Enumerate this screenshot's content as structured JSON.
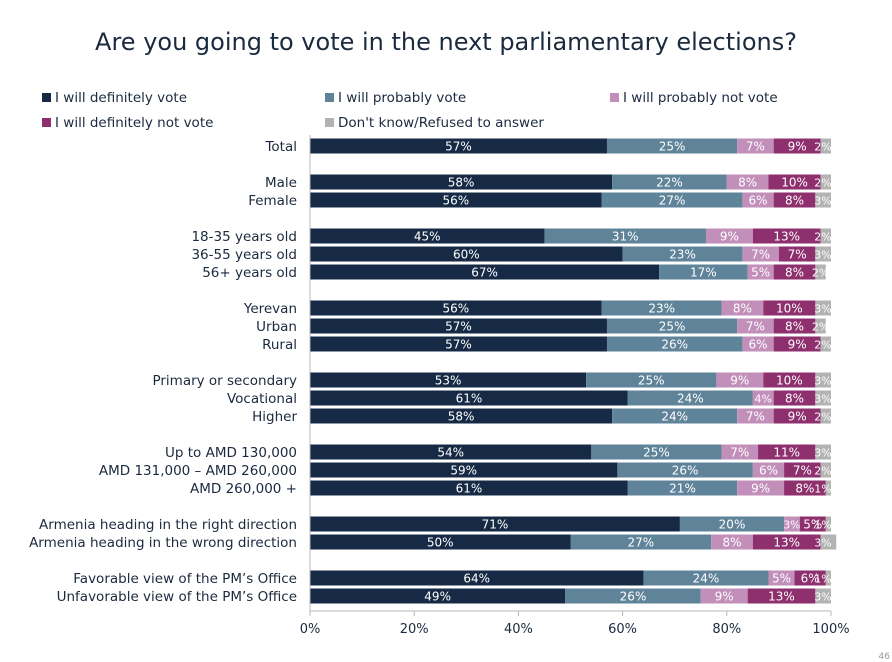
{
  "title": "Are you going to vote in the next parliamentary elections?",
  "page_number": "46",
  "colors": {
    "definitely_vote": "#172a45",
    "probably_vote": "#5f8399",
    "probably_not_vote": "#c28fba",
    "definitely_not_vote": "#8e2f6e",
    "dont_know": "#b3b3b3"
  },
  "chart_data": {
    "type": "bar",
    "orientation": "horizontal",
    "stacked": true,
    "title": "Are you going to vote in the next parliamentary elections?",
    "xlim": [
      0,
      100
    ],
    "x_ticks": [
      "0%",
      "20%",
      "40%",
      "60%",
      "80%",
      "100%"
    ],
    "legend_position": "top",
    "series": [
      {
        "name": "I will definitely vote",
        "color": "#172a45"
      },
      {
        "name": "I will probably vote",
        "color": "#5f8399"
      },
      {
        "name": "I will probably not vote",
        "color": "#c28fba"
      },
      {
        "name": "I will definitely not vote",
        "color": "#8e2f6e"
      },
      {
        "name": "Don't know/Refused to answer",
        "color": "#b3b3b3"
      }
    ],
    "groups": [
      {
        "rows": [
          {
            "label": "Total",
            "values": [
              57,
              25,
              7,
              9,
              2
            ]
          }
        ]
      },
      {
        "rows": [
          {
            "label": "Male",
            "values": [
              58,
              22,
              8,
              10,
              2
            ]
          },
          {
            "label": "Female",
            "values": [
              56,
              27,
              6,
              8,
              3
            ]
          }
        ]
      },
      {
        "rows": [
          {
            "label": "18-35 years old",
            "values": [
              45,
              31,
              9,
              13,
              2
            ]
          },
          {
            "label": "36-55 years old",
            "values": [
              60,
              23,
              7,
              7,
              3
            ]
          },
          {
            "label": "56+ years old",
            "values": [
              67,
              17,
              5,
              8,
              2
            ]
          }
        ]
      },
      {
        "rows": [
          {
            "label": "Yerevan",
            "values": [
              56,
              23,
              8,
              10,
              3
            ]
          },
          {
            "label": "Urban",
            "values": [
              57,
              25,
              7,
              8,
              2
            ]
          },
          {
            "label": "Rural",
            "values": [
              57,
              26,
              6,
              9,
              2
            ]
          }
        ]
      },
      {
        "rows": [
          {
            "label": "Primary or secondary",
            "values": [
              53,
              25,
              9,
              10,
              3
            ]
          },
          {
            "label": "Vocational",
            "values": [
              61,
              24,
              4,
              8,
              3
            ]
          },
          {
            "label": "Higher",
            "values": [
              58,
              24,
              7,
              9,
              2
            ]
          }
        ]
      },
      {
        "rows": [
          {
            "label": "Up to AMD 130,000",
            "values": [
              54,
              25,
              7,
              11,
              3
            ]
          },
          {
            "label": "AMD 131,000 – AMD 260,000",
            "values": [
              59,
              26,
              6,
              7,
              2
            ]
          },
          {
            "label": "AMD 260,000 +",
            "values": [
              61,
              21,
              9,
              8,
              1
            ]
          }
        ]
      },
      {
        "rows": [
          {
            "label": "Armenia heading in the right direction",
            "values": [
              71,
              20,
              3,
              5,
              1
            ]
          },
          {
            "label": "Armenia heading in the wrong direction",
            "values": [
              50,
              27,
              8,
              13,
              3
            ]
          }
        ]
      },
      {
        "rows": [
          {
            "label": "Favorable view of the PM’s Office",
            "values": [
              64,
              24,
              5,
              6,
              1
            ]
          },
          {
            "label": "Unfavorable view of the PM’s Office",
            "values": [
              49,
              26,
              9,
              13,
              3
            ]
          }
        ]
      }
    ]
  }
}
